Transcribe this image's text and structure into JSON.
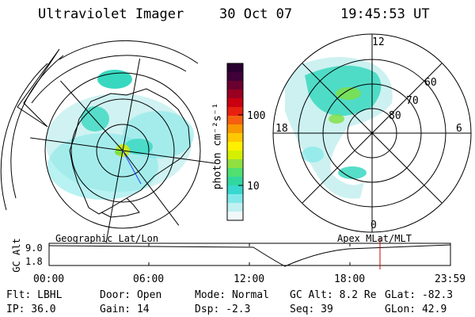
{
  "header": {
    "instrument": "Ultraviolet Imager",
    "date": "30 Oct 07",
    "time": "19:45:53 UT"
  },
  "colorbar": {
    "unit_label": "photon cm⁻²s⁻¹",
    "ticks": [
      "100",
      "10"
    ],
    "colors": [
      "#2a0030",
      "#40003a",
      "#6a0030",
      "#9a0020",
      "#c80010",
      "#e82010",
      "#f46010",
      "#f89800",
      "#ffc800",
      "#fff000",
      "#d4f000",
      "#90e040",
      "#50e070",
      "#30d8a0",
      "#38d8d0",
      "#80e8e8",
      "#c0f0f0",
      "#f0f8f8"
    ]
  },
  "left_map": {
    "caption": "Geographic Lat/Lon"
  },
  "right_map": {
    "caption": "Apex  MLat/MLT",
    "mlt_labels": {
      "top": "12",
      "right": "6",
      "bottom": "0",
      "left": "18"
    },
    "lat_labels": [
      "60",
      "70",
      "80"
    ]
  },
  "altitude_plot": {
    "ylabel": "GC Alt",
    "y_ticks": [
      "9.0",
      "1.8"
    ],
    "x_ticks": [
      "00:00",
      "06:00",
      "12:00",
      "18:00",
      "23:59"
    ],
    "marker_color": "#d00000"
  },
  "status": {
    "filter": "Flt: LBHL",
    "ip": "IP: 36.0",
    "door": "Door: Open",
    "gain": "Gain: 14",
    "mode": "Mode: Normal",
    "dsp": "Dsp:    -2.3",
    "gc_alt": "GC Alt: 8.2 Re",
    "seq": "Seq: 39",
    "glat": "GLat: -82.3",
    "glon": "GLon:  42.9"
  }
}
